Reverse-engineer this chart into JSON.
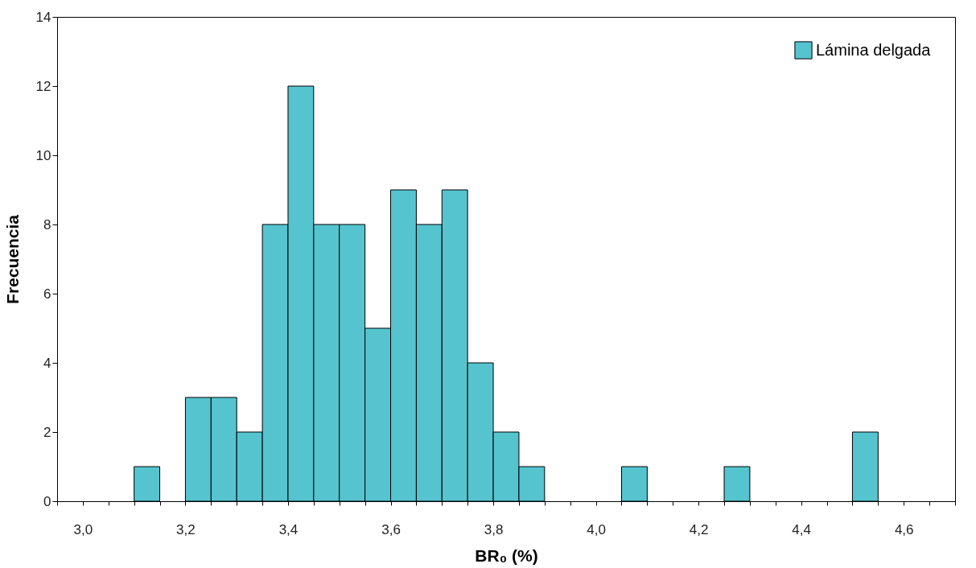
{
  "chart_data": {
    "type": "histogram",
    "xlabel": "BR₀ (%)",
    "ylabel": "Frecuencia",
    "bins": [
      2.95,
      3.0,
      3.05,
      3.1,
      3.15,
      3.2,
      3.25,
      3.3,
      3.35,
      3.4,
      3.45,
      3.5,
      3.55,
      3.6,
      3.65,
      3.7,
      3.75,
      3.8,
      3.85,
      3.9,
      3.95,
      4.0,
      4.05,
      4.1,
      4.15,
      4.2,
      4.25,
      4.3,
      4.35,
      4.4,
      4.45,
      4.5,
      4.55,
      4.6,
      4.65,
      4.7
    ],
    "series": [
      {
        "name": "Lámina delgada",
        "color": "#55c4cf",
        "values": [
          0,
          0,
          0,
          1,
          0,
          3,
          3,
          2,
          8,
          12,
          8,
          8,
          5,
          9,
          8,
          9,
          4,
          2,
          1,
          0,
          0,
          0,
          1,
          0,
          0,
          0,
          1,
          0,
          0,
          0,
          0,
          2,
          0,
          0,
          0
        ]
      }
    ],
    "xlim": [
      2.95,
      4.7
    ],
    "xticks": [
      {
        "value": 2.95,
        "label": null
      },
      {
        "value": 3.0,
        "label": "3,0"
      },
      {
        "value": 3.05,
        "label": null
      },
      {
        "value": 3.1,
        "label": null
      },
      {
        "value": 3.15,
        "label": null
      },
      {
        "value": 3.2,
        "label": "3,2"
      },
      {
        "value": 3.25,
        "label": null
      },
      {
        "value": 3.3,
        "label": null
      },
      {
        "value": 3.35,
        "label": null
      },
      {
        "value": 3.4,
        "label": "3,4"
      },
      {
        "value": 3.45,
        "label": null
      },
      {
        "value": 3.5,
        "label": null
      },
      {
        "value": 3.55,
        "label": null
      },
      {
        "value": 3.6,
        "label": "3,6"
      },
      {
        "value": 3.65,
        "label": null
      },
      {
        "value": 3.7,
        "label": null
      },
      {
        "value": 3.75,
        "label": null
      },
      {
        "value": 3.8,
        "label": "3,8"
      },
      {
        "value": 3.85,
        "label": null
      },
      {
        "value": 3.9,
        "label": null
      },
      {
        "value": 3.95,
        "label": null
      },
      {
        "value": 4.0,
        "label": "4,0"
      },
      {
        "value": 4.05,
        "label": null
      },
      {
        "value": 4.1,
        "label": null
      },
      {
        "value": 4.15,
        "label": null
      },
      {
        "value": 4.2,
        "label": "4,2"
      },
      {
        "value": 4.25,
        "label": null
      },
      {
        "value": 4.3,
        "label": null
      },
      {
        "value": 4.35,
        "label": null
      },
      {
        "value": 4.4,
        "label": "4,4"
      },
      {
        "value": 4.45,
        "label": null
      },
      {
        "value": 4.5,
        "label": null
      },
      {
        "value": 4.55,
        "label": null
      },
      {
        "value": 4.6,
        "label": "4,6"
      },
      {
        "value": 4.65,
        "label": null
      },
      {
        "value": 4.7,
        "label": null
      }
    ],
    "ylim": [
      0,
      14
    ],
    "yticks": [
      0,
      2,
      4,
      6,
      8,
      10,
      12,
      14
    ],
    "grid": false,
    "legend": "top right"
  }
}
